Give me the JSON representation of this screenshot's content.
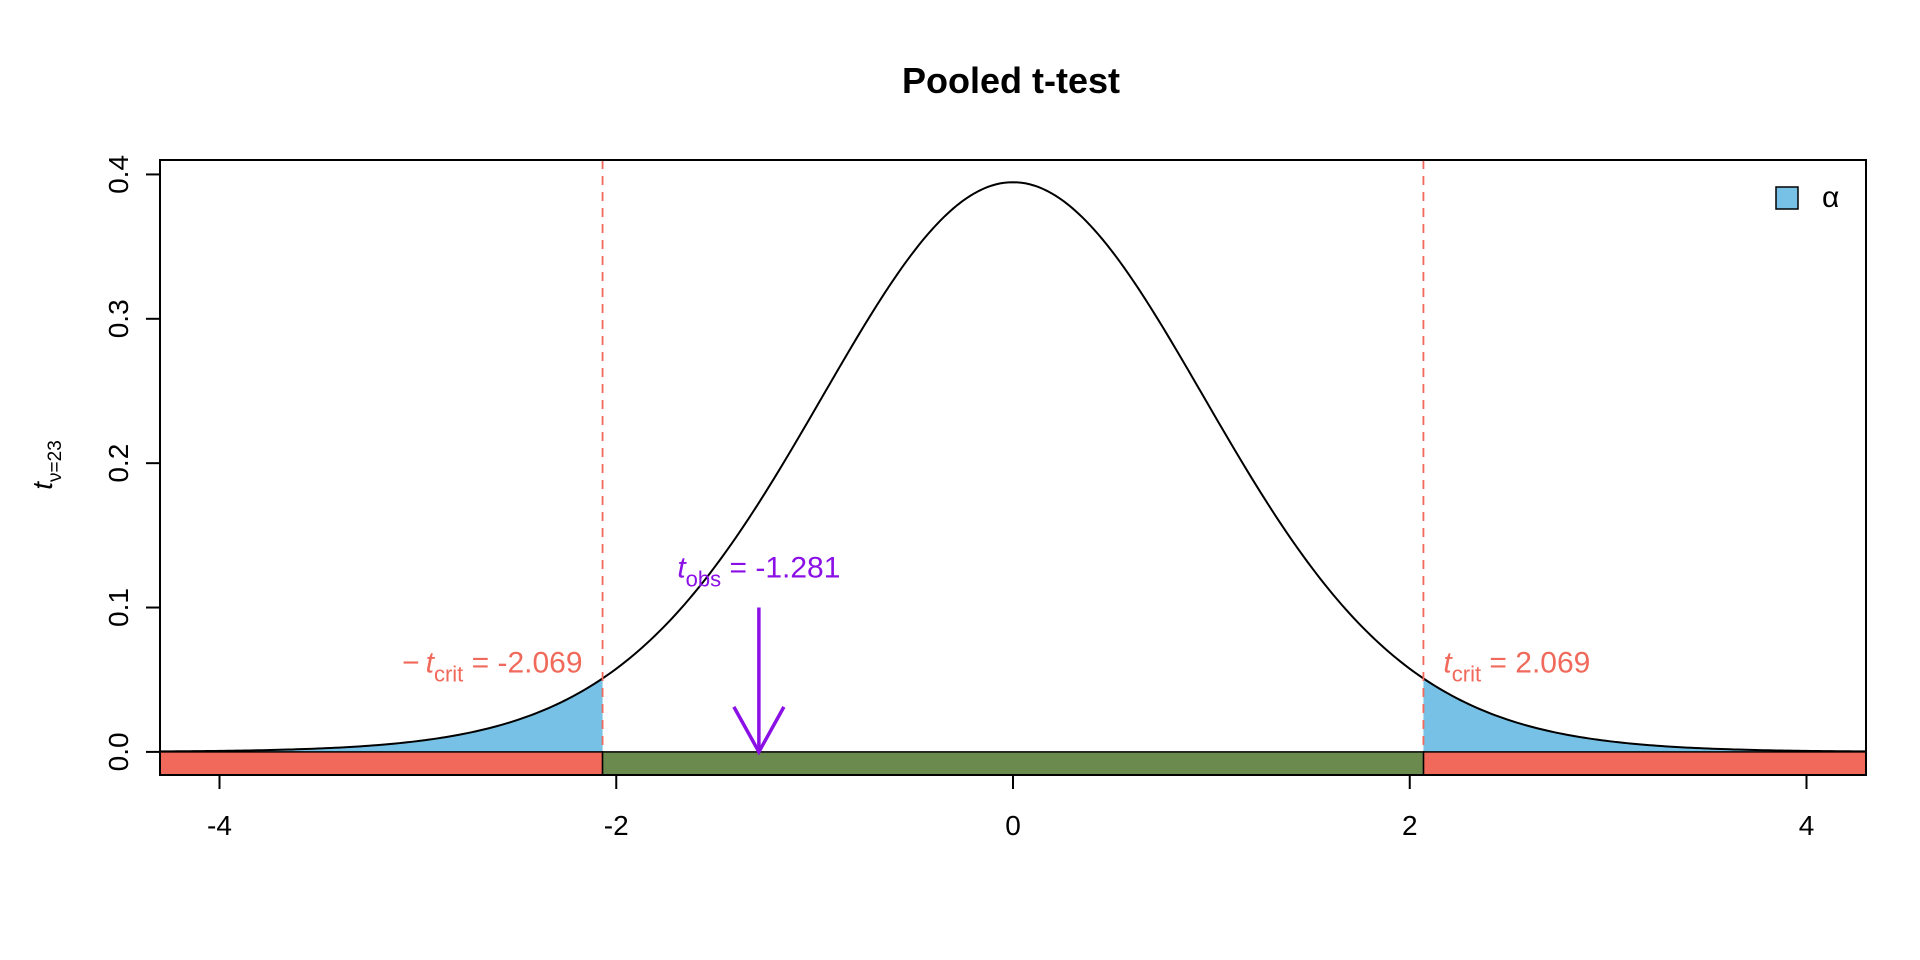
{
  "chart_data": {
    "type": "area",
    "title": "Pooled t-test",
    "ylabel": {
      "main": "t",
      "sub": "ν=23"
    },
    "df": 23,
    "xlim": [
      -4.3,
      4.3
    ],
    "ylim": [
      -0.016,
      0.41
    ],
    "x_ticks": [
      -4,
      -2,
      0,
      2,
      4
    ],
    "x_tick_labels": [
      "-4",
      "-2",
      "0",
      "2",
      "4"
    ],
    "y_ticks": [
      0.0,
      0.1,
      0.2,
      0.3,
      0.4
    ],
    "y_tick_labels": [
      "0.0",
      "0.1",
      "0.2",
      "0.3",
      "0.4"
    ],
    "t_crit": 2.069,
    "t_obs": -1.281,
    "annotations": {
      "t_obs": {
        "symbol": "t",
        "sub": "obs",
        "text": " = -1.281"
      },
      "t_crit_neg": {
        "prefix": "−",
        "symbol": "t",
        "sub": "crit",
        "text": " = -2.069"
      },
      "t_crit_pos": {
        "symbol": "t",
        "sub": "crit",
        "text": " = 2.069"
      }
    },
    "legend": {
      "label": "α",
      "position": "top-right"
    },
    "colors": {
      "alpha_fill": "#76C1E5",
      "reject_bar": "#F0695A",
      "accept_bar": "#6B8A4D",
      "crit_line": "#F0695A",
      "obs_arrow": "#8B10E6",
      "curve": "#000000"
    }
  }
}
